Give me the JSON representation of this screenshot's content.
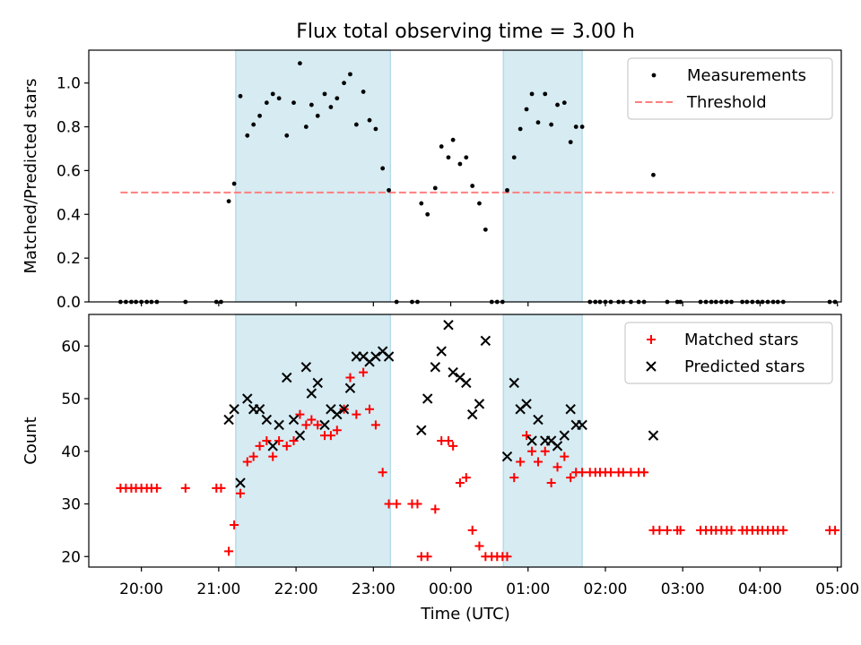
{
  "chart_data": {
    "title": "Flux total observing time = 3.00 h",
    "xlabel": "Time (UTC)",
    "xlim": [
      19.32,
      29.05
    ],
    "x_ticks": [
      {
        "h": 20,
        "label": "20:00"
      },
      {
        "h": 21,
        "label": "21:00"
      },
      {
        "h": 22,
        "label": "22:00"
      },
      {
        "h": 23,
        "label": "23:00"
      },
      {
        "h": 24,
        "label": "00:00"
      },
      {
        "h": 25,
        "label": "01:00"
      },
      {
        "h": 26,
        "label": "02:00"
      },
      {
        "h": 27,
        "label": "03:00"
      },
      {
        "h": 28,
        "label": "04:00"
      },
      {
        "h": 29,
        "label": "05:00"
      }
    ],
    "shaded_intervals": [
      [
        21.22,
        23.22
      ],
      [
        24.68,
        25.7
      ]
    ],
    "shade_color": "#add8e6",
    "panels": [
      {
        "type": "scatter",
        "ylabel": "Matched/Predicted stars",
        "ylim": [
          0,
          1.15
        ],
        "y_ticks": [
          {
            "v": 0,
            "label": "0.0"
          },
          {
            "v": 0.2,
            "label": "0.2"
          },
          {
            "v": 0.4,
            "label": "0.4"
          },
          {
            "v": 0.6,
            "label": "0.6"
          },
          {
            "v": 0.8,
            "label": "0.8"
          },
          {
            "v": 1.0,
            "label": "1.0"
          }
        ],
        "threshold": {
          "value": 0.5,
          "x": [
            19.73,
            28.95
          ],
          "color": "#ff7f7f"
        },
        "legend": [
          {
            "label": "Measurements",
            "marker": "dot",
            "color": "#000000"
          },
          {
            "label": "Threshold",
            "marker": "dash",
            "color": "#ff7f7f"
          }
        ],
        "measurements": [
          [
            19.73,
            0
          ],
          [
            19.8,
            0
          ],
          [
            19.87,
            0
          ],
          [
            19.93,
            0
          ],
          [
            20.0,
            0
          ],
          [
            20.07,
            0
          ],
          [
            20.13,
            0
          ],
          [
            20.2,
            0
          ],
          [
            20.57,
            0
          ],
          [
            20.97,
            0
          ],
          [
            21.03,
            0
          ],
          [
            21.13,
            0.46
          ],
          [
            21.2,
            0.54
          ],
          [
            21.28,
            0.94
          ],
          [
            21.37,
            0.76
          ],
          [
            21.45,
            0.81
          ],
          [
            21.53,
            0.85
          ],
          [
            21.62,
            0.91
          ],
          [
            21.7,
            0.95
          ],
          [
            21.78,
            0.93
          ],
          [
            21.88,
            0.76
          ],
          [
            21.97,
            0.91
          ],
          [
            22.05,
            1.09
          ],
          [
            22.13,
            0.8
          ],
          [
            22.2,
            0.9
          ],
          [
            22.28,
            0.85
          ],
          [
            22.37,
            0.95
          ],
          [
            22.45,
            0.89
          ],
          [
            22.53,
            0.93
          ],
          [
            22.62,
            1.0
          ],
          [
            22.7,
            1.04
          ],
          [
            22.78,
            0.81
          ],
          [
            22.87,
            0.96
          ],
          [
            22.95,
            0.83
          ],
          [
            23.03,
            0.79
          ],
          [
            23.12,
            0.61
          ],
          [
            23.2,
            0.51
          ],
          [
            23.3,
            0
          ],
          [
            23.5,
            0
          ],
          [
            23.57,
            0
          ],
          [
            23.62,
            0.45
          ],
          [
            23.7,
            0.4
          ],
          [
            23.8,
            0.52
          ],
          [
            23.88,
            0.71
          ],
          [
            23.97,
            0.66
          ],
          [
            24.03,
            0.74
          ],
          [
            24.12,
            0.63
          ],
          [
            24.2,
            0.66
          ],
          [
            24.28,
            0.53
          ],
          [
            24.37,
            0.45
          ],
          [
            24.45,
            0.33
          ],
          [
            24.53,
            0
          ],
          [
            24.6,
            0
          ],
          [
            24.67,
            0
          ],
          [
            24.73,
            0.51
          ],
          [
            24.82,
            0.66
          ],
          [
            24.9,
            0.79
          ],
          [
            24.98,
            0.88
          ],
          [
            25.05,
            0.95
          ],
          [
            25.13,
            0.82
          ],
          [
            25.22,
            0.95
          ],
          [
            25.3,
            0.81
          ],
          [
            25.38,
            0.9
          ],
          [
            25.47,
            0.91
          ],
          [
            25.55,
            0.73
          ],
          [
            25.62,
            0.8
          ],
          [
            25.7,
            0.8
          ],
          [
            25.8,
            0
          ],
          [
            25.87,
            0
          ],
          [
            25.93,
            0
          ],
          [
            26.0,
            0
          ],
          [
            26.07,
            0
          ],
          [
            26.17,
            0
          ],
          [
            26.23,
            0
          ],
          [
            26.33,
            0
          ],
          [
            26.43,
            0
          ],
          [
            26.5,
            0
          ],
          [
            26.62,
            0.58
          ],
          [
            26.8,
            0
          ],
          [
            26.93,
            0
          ],
          [
            26.97,
            0
          ],
          [
            27.23,
            0
          ],
          [
            27.3,
            0
          ],
          [
            27.37,
            0
          ],
          [
            27.43,
            0
          ],
          [
            27.5,
            0
          ],
          [
            27.57,
            0
          ],
          [
            27.63,
            0
          ],
          [
            27.77,
            0
          ],
          [
            27.83,
            0
          ],
          [
            27.9,
            0
          ],
          [
            27.97,
            0
          ],
          [
            28.03,
            0
          ],
          [
            28.1,
            0
          ],
          [
            28.17,
            0
          ],
          [
            28.23,
            0
          ],
          [
            28.3,
            0
          ],
          [
            28.9,
            0
          ],
          [
            28.97,
            0
          ]
        ]
      },
      {
        "type": "scatter",
        "ylabel": "Count",
        "ylim": [
          18,
          66
        ],
        "y_ticks": [
          {
            "v": 20,
            "label": "20"
          },
          {
            "v": 30,
            "label": "30"
          },
          {
            "v": 40,
            "label": "40"
          },
          {
            "v": 50,
            "label": "50"
          },
          {
            "v": 60,
            "label": "60"
          }
        ],
        "legend": [
          {
            "label": "Matched stars",
            "marker": "plus",
            "color": "#ff0000"
          },
          {
            "label": "Predicted stars",
            "marker": "x",
            "color": "#000000"
          }
        ],
        "matched": [
          [
            19.73,
            33
          ],
          [
            19.8,
            33
          ],
          [
            19.87,
            33
          ],
          [
            19.93,
            33
          ],
          [
            20.0,
            33
          ],
          [
            20.07,
            33
          ],
          [
            20.13,
            33
          ],
          [
            20.2,
            33
          ],
          [
            20.57,
            33
          ],
          [
            20.97,
            33
          ],
          [
            21.03,
            33
          ],
          [
            21.13,
            21
          ],
          [
            21.2,
            26
          ],
          [
            21.28,
            32
          ],
          [
            21.37,
            38
          ],
          [
            21.45,
            39
          ],
          [
            21.53,
            41
          ],
          [
            21.62,
            42
          ],
          [
            21.7,
            39
          ],
          [
            21.78,
            42
          ],
          [
            21.88,
            41
          ],
          [
            21.97,
            42
          ],
          [
            22.05,
            47
          ],
          [
            22.13,
            45
          ],
          [
            22.2,
            46
          ],
          [
            22.28,
            45
          ],
          [
            22.37,
            43
          ],
          [
            22.45,
            43
          ],
          [
            22.53,
            44
          ],
          [
            22.62,
            48
          ],
          [
            22.7,
            54
          ],
          [
            22.78,
            47
          ],
          [
            22.87,
            55
          ],
          [
            22.95,
            48
          ],
          [
            23.03,
            45
          ],
          [
            23.12,
            36
          ],
          [
            23.2,
            30
          ],
          [
            23.3,
            30
          ],
          [
            23.5,
            30
          ],
          [
            23.57,
            30
          ],
          [
            23.62,
            20
          ],
          [
            23.7,
            20
          ],
          [
            23.8,
            29
          ],
          [
            23.88,
            42
          ],
          [
            23.97,
            42
          ],
          [
            24.03,
            41
          ],
          [
            24.12,
            34
          ],
          [
            24.2,
            35
          ],
          [
            24.28,
            25
          ],
          [
            24.37,
            22
          ],
          [
            24.45,
            20
          ],
          [
            24.53,
            20
          ],
          [
            24.6,
            20
          ],
          [
            24.67,
            20
          ],
          [
            24.73,
            20
          ],
          [
            24.82,
            35
          ],
          [
            24.9,
            38
          ],
          [
            24.98,
            43
          ],
          [
            25.05,
            40
          ],
          [
            25.13,
            38
          ],
          [
            25.22,
            40
          ],
          [
            25.3,
            34
          ],
          [
            25.38,
            37
          ],
          [
            25.47,
            39
          ],
          [
            25.55,
            35
          ],
          [
            25.62,
            36
          ],
          [
            25.7,
            36
          ],
          [
            25.8,
            36
          ],
          [
            25.87,
            36
          ],
          [
            25.93,
            36
          ],
          [
            26.0,
            36
          ],
          [
            26.07,
            36
          ],
          [
            26.17,
            36
          ],
          [
            26.23,
            36
          ],
          [
            26.33,
            36
          ],
          [
            26.43,
            36
          ],
          [
            26.5,
            36
          ],
          [
            26.62,
            25
          ],
          [
            26.7,
            25
          ],
          [
            26.8,
            25
          ],
          [
            26.93,
            25
          ],
          [
            26.97,
            25
          ],
          [
            27.23,
            25
          ],
          [
            27.3,
            25
          ],
          [
            27.37,
            25
          ],
          [
            27.43,
            25
          ],
          [
            27.5,
            25
          ],
          [
            27.57,
            25
          ],
          [
            27.63,
            25
          ],
          [
            27.77,
            25
          ],
          [
            27.83,
            25
          ],
          [
            27.9,
            25
          ],
          [
            27.97,
            25
          ],
          [
            28.03,
            25
          ],
          [
            28.1,
            25
          ],
          [
            28.17,
            25
          ],
          [
            28.23,
            25
          ],
          [
            28.3,
            25
          ],
          [
            28.9,
            25
          ],
          [
            28.97,
            25
          ]
        ],
        "predicted": [
          [
            21.13,
            46
          ],
          [
            21.2,
            48
          ],
          [
            21.28,
            34
          ],
          [
            21.37,
            50
          ],
          [
            21.45,
            48
          ],
          [
            21.53,
            48
          ],
          [
            21.62,
            46
          ],
          [
            21.7,
            41
          ],
          [
            21.78,
            45
          ],
          [
            21.88,
            54
          ],
          [
            21.97,
            46
          ],
          [
            22.05,
            43
          ],
          [
            22.13,
            56
          ],
          [
            22.2,
            51
          ],
          [
            22.28,
            53
          ],
          [
            22.37,
            45
          ],
          [
            22.45,
            48
          ],
          [
            22.53,
            47
          ],
          [
            22.62,
            48
          ],
          [
            22.7,
            52
          ],
          [
            22.78,
            58
          ],
          [
            22.87,
            58
          ],
          [
            22.95,
            57
          ],
          [
            23.03,
            58
          ],
          [
            23.12,
            59
          ],
          [
            23.2,
            58
          ],
          [
            23.62,
            44
          ],
          [
            23.7,
            50
          ],
          [
            23.8,
            56
          ],
          [
            23.88,
            59
          ],
          [
            23.97,
            64
          ],
          [
            24.03,
            55
          ],
          [
            24.12,
            54
          ],
          [
            24.2,
            53
          ],
          [
            24.28,
            47
          ],
          [
            24.37,
            49
          ],
          [
            24.45,
            61
          ],
          [
            24.73,
            39
          ],
          [
            24.82,
            53
          ],
          [
            24.9,
            48
          ],
          [
            24.98,
            49
          ],
          [
            25.05,
            42
          ],
          [
            25.13,
            46
          ],
          [
            25.22,
            42
          ],
          [
            25.3,
            42
          ],
          [
            25.38,
            41
          ],
          [
            25.47,
            43
          ],
          [
            25.55,
            48
          ],
          [
            25.62,
            45
          ],
          [
            25.7,
            45
          ],
          [
            26.62,
            43
          ]
        ]
      }
    ]
  }
}
